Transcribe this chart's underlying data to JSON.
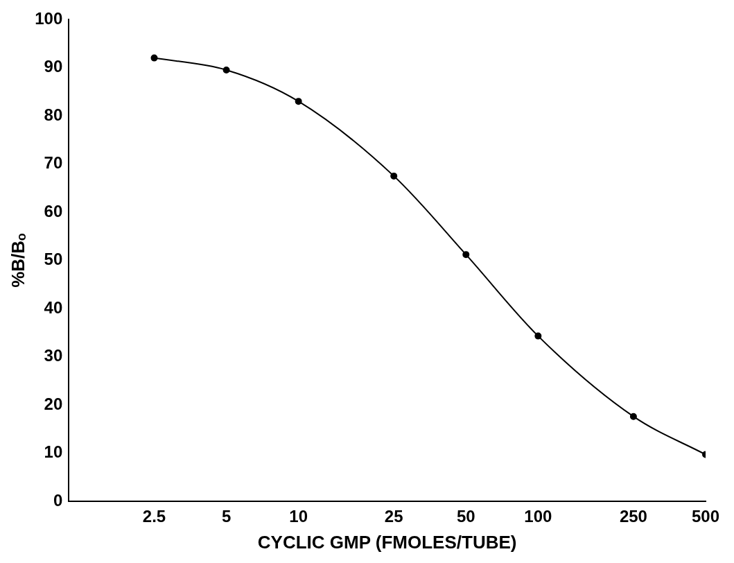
{
  "chart_data": {
    "type": "line",
    "xlabel": "CYCLIC GMP (FMOLES/TUBE)",
    "ylabel": "%B/Bₒ",
    "x": [
      2.5,
      5,
      10,
      25,
      50,
      100,
      250,
      500
    ],
    "series": [
      {
        "color": "#000000",
        "values": [
          92,
          89.5,
          83,
          67.5,
          51.2,
          34.3,
          17.6,
          9.7
        ]
      }
    ],
    "log": "x",
    "xlim": [
      1.1,
      500
    ],
    "xticks": [
      2.5,
      5,
      10,
      25,
      50,
      100,
      250,
      500
    ],
    "ylim": [
      0,
      100
    ],
    "yticks": [
      0,
      10,
      20,
      30,
      40,
      50,
      60,
      70,
      80,
      90,
      100
    ],
    "grid": false,
    "legend": false,
    "marker": "circle",
    "line_style": "solid"
  }
}
